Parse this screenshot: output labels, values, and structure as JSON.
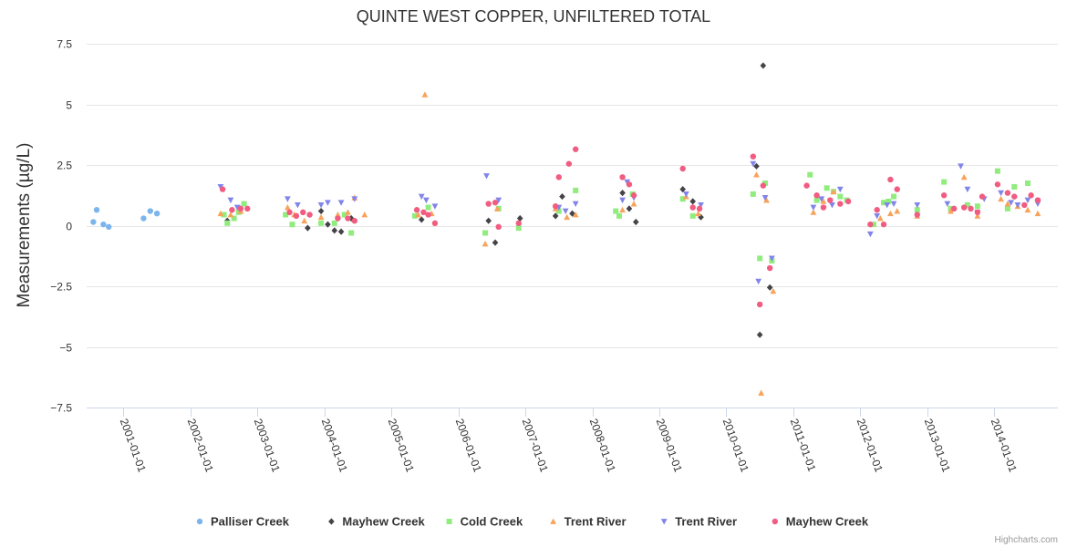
{
  "chart_data": {
    "type": "scatter",
    "title": "QUINTE WEST COPPER, UNFILTERED TOTAL",
    "xlabel": "",
    "ylabel": "Measurements (µg/L)",
    "xlim": [
      2000.45,
      2014.95
    ],
    "ylim": [
      -7.5,
      7.5
    ],
    "yticks": [
      {
        "v": 7.5,
        "label": "7.5"
      },
      {
        "v": 5,
        "label": "5"
      },
      {
        "v": 2.5,
        "label": "2.5"
      },
      {
        "v": 0,
        "label": "0"
      },
      {
        "v": -2.5,
        "label": "−2.5"
      },
      {
        "v": -5,
        "label": "−5"
      },
      {
        "v": -7.5,
        "label": "−7.5"
      }
    ],
    "xticks": [
      {
        "v": 2001,
        "label": "2001-01-01"
      },
      {
        "v": 2002,
        "label": "2002-01-01"
      },
      {
        "v": 2003,
        "label": "2003-01-01"
      },
      {
        "v": 2004,
        "label": "2004-01-01"
      },
      {
        "v": 2005,
        "label": "2005-01-01"
      },
      {
        "v": 2006,
        "label": "2006-01-01"
      },
      {
        "v": 2007,
        "label": "2007-01-01"
      },
      {
        "v": 2008,
        "label": "2008-01-01"
      },
      {
        "v": 2009,
        "label": "2009-01-01"
      },
      {
        "v": 2010,
        "label": "2010-01-01"
      },
      {
        "v": 2011,
        "label": "2011-01-01"
      },
      {
        "v": 2012,
        "label": "2012-01-01"
      },
      {
        "v": 2013,
        "label": "2013-01-01"
      },
      {
        "v": 2014,
        "label": "2014-01-01"
      }
    ],
    "series": [
      {
        "name": "Palliser Creek",
        "marker": "circle",
        "color": "#7cb5ec",
        "points": [
          [
            2000.55,
            0.15
          ],
          [
            2000.6,
            0.65
          ],
          [
            2000.7,
            0.05
          ],
          [
            2000.78,
            -0.05
          ],
          [
            2001.3,
            0.3
          ],
          [
            2001.4,
            0.6
          ],
          [
            2001.5,
            0.5
          ]
        ]
      },
      {
        "name": "Mayhew Creek",
        "marker": "diamond",
        "color": "#434348",
        "points": [
          [
            2002.55,
            0.2
          ],
          [
            2003.75,
            -0.1
          ],
          [
            2003.95,
            0.6
          ],
          [
            2004.05,
            0.05
          ],
          [
            2004.15,
            -0.2
          ],
          [
            2004.25,
            -0.25
          ],
          [
            2004.4,
            0.3
          ],
          [
            2005.45,
            0.25
          ],
          [
            2006.45,
            0.2
          ],
          [
            2006.55,
            -0.7
          ],
          [
            2006.92,
            0.3
          ],
          [
            2007.45,
            0.4
          ],
          [
            2007.55,
            1.2
          ],
          [
            2007.7,
            0.5
          ],
          [
            2008.45,
            1.35
          ],
          [
            2008.55,
            0.7
          ],
          [
            2008.65,
            0.15
          ],
          [
            2009.35,
            1.5
          ],
          [
            2009.5,
            1.0
          ],
          [
            2009.62,
            0.35
          ],
          [
            2010.45,
            2.45
          ],
          [
            2010.5,
            -4.5
          ],
          [
            2010.55,
            6.6
          ],
          [
            2010.65,
            -2.55
          ]
        ]
      },
      {
        "name": "Cold Creek",
        "marker": "square",
        "color": "#90ed7d",
        "points": [
          [
            2002.5,
            0.45
          ],
          [
            2002.55,
            0.1
          ],
          [
            2002.65,
            0.3
          ],
          [
            2002.72,
            0.55
          ],
          [
            2002.8,
            0.9
          ],
          [
            2003.42,
            0.45
          ],
          [
            2003.52,
            0.05
          ],
          [
            2003.95,
            0.1
          ],
          [
            2004.15,
            0.1
          ],
          [
            2004.3,
            0.45
          ],
          [
            2004.4,
            -0.3
          ],
          [
            2005.35,
            0.4
          ],
          [
            2005.55,
            0.75
          ],
          [
            2006.4,
            -0.3
          ],
          [
            2006.6,
            0.7
          ],
          [
            2006.9,
            -0.1
          ],
          [
            2007.5,
            0.6
          ],
          [
            2007.75,
            1.45
          ],
          [
            2008.35,
            0.6
          ],
          [
            2008.4,
            0.4
          ],
          [
            2008.6,
            1.3
          ],
          [
            2009.35,
            1.1
          ],
          [
            2009.5,
            0.4
          ],
          [
            2010.4,
            1.3
          ],
          [
            2010.5,
            -1.35
          ],
          [
            2010.58,
            1.75
          ],
          [
            2010.68,
            -1.45
          ],
          [
            2011.25,
            2.1
          ],
          [
            2011.35,
            1.05
          ],
          [
            2011.5,
            1.55
          ],
          [
            2011.6,
            1.4
          ],
          [
            2011.7,
            1.2
          ],
          [
            2011.8,
            1.05
          ],
          [
            2012.2,
            0.05
          ],
          [
            2012.35,
            0.95
          ],
          [
            2012.42,
            1.0
          ],
          [
            2012.5,
            1.2
          ],
          [
            2012.85,
            0.65
          ],
          [
            2013.25,
            1.8
          ],
          [
            2013.35,
            0.7
          ],
          [
            2013.6,
            0.85
          ],
          [
            2013.75,
            0.8
          ],
          [
            2014.05,
            2.25
          ],
          [
            2014.2,
            0.7
          ],
          [
            2014.3,
            1.6
          ],
          [
            2014.5,
            1.75
          ]
        ]
      },
      {
        "name": "Trent River",
        "marker": "triangle",
        "color": "#f7a35c",
        "points": [
          [
            2002.45,
            0.5
          ],
          [
            2002.6,
            0.45
          ],
          [
            2002.75,
            0.6
          ],
          [
            2003.45,
            0.75
          ],
          [
            2003.55,
            0.45
          ],
          [
            2003.7,
            0.2
          ],
          [
            2003.95,
            0.35
          ],
          [
            2004.2,
            0.45
          ],
          [
            2004.35,
            0.55
          ],
          [
            2004.45,
            1.15
          ],
          [
            2004.6,
            0.45
          ],
          [
            2005.4,
            0.45
          ],
          [
            2005.5,
            5.4
          ],
          [
            2005.6,
            0.5
          ],
          [
            2006.4,
            -0.75
          ],
          [
            2006.58,
            0.7
          ],
          [
            2007.45,
            0.7
          ],
          [
            2007.62,
            0.35
          ],
          [
            2007.75,
            0.45
          ],
          [
            2008.45,
            0.65
          ],
          [
            2008.62,
            0.9
          ],
          [
            2009.4,
            1.2
          ],
          [
            2009.58,
            0.5
          ],
          [
            2010.45,
            2.1
          ],
          [
            2010.52,
            -6.9
          ],
          [
            2010.6,
            1.05
          ],
          [
            2010.7,
            -2.7
          ],
          [
            2011.3,
            0.55
          ],
          [
            2011.45,
            1.0
          ],
          [
            2011.6,
            1.4
          ],
          [
            2012.3,
            0.3
          ],
          [
            2012.45,
            0.5
          ],
          [
            2012.55,
            0.6
          ],
          [
            2012.85,
            0.4
          ],
          [
            2013.35,
            0.6
          ],
          [
            2013.55,
            2.0
          ],
          [
            2013.75,
            0.4
          ],
          [
            2014.1,
            1.1
          ],
          [
            2014.2,
            0.9
          ],
          [
            2014.35,
            0.8
          ],
          [
            2014.5,
            0.65
          ],
          [
            2014.65,
            0.5
          ]
        ]
      },
      {
        "name": "Trent River",
        "marker": "triangle-down",
        "color": "#8085e9",
        "points": [
          [
            2002.45,
            1.6
          ],
          [
            2002.6,
            1.05
          ],
          [
            2002.7,
            0.75
          ],
          [
            2003.45,
            1.1
          ],
          [
            2003.6,
            0.85
          ],
          [
            2003.95,
            0.85
          ],
          [
            2004.05,
            0.95
          ],
          [
            2004.25,
            0.95
          ],
          [
            2004.45,
            1.1
          ],
          [
            2005.45,
            1.2
          ],
          [
            2005.52,
            1.05
          ],
          [
            2005.65,
            0.8
          ],
          [
            2006.42,
            2.05
          ],
          [
            2006.6,
            1.05
          ],
          [
            2007.5,
            0.75
          ],
          [
            2007.6,
            0.6
          ],
          [
            2007.75,
            0.9
          ],
          [
            2008.45,
            1.05
          ],
          [
            2008.52,
            1.8
          ],
          [
            2008.62,
            1.15
          ],
          [
            2009.4,
            1.3
          ],
          [
            2009.62,
            0.85
          ],
          [
            2010.4,
            2.55
          ],
          [
            2010.48,
            -2.3
          ],
          [
            2010.58,
            1.15
          ],
          [
            2010.68,
            -1.35
          ],
          [
            2011.3,
            0.75
          ],
          [
            2011.42,
            1.1
          ],
          [
            2011.58,
            0.85
          ],
          [
            2011.7,
            1.5
          ],
          [
            2012.15,
            -0.35
          ],
          [
            2012.25,
            0.4
          ],
          [
            2012.4,
            0.85
          ],
          [
            2012.5,
            0.9
          ],
          [
            2012.85,
            0.85
          ],
          [
            2013.3,
            0.9
          ],
          [
            2013.5,
            2.45
          ],
          [
            2013.6,
            1.5
          ],
          [
            2013.75,
            0.55
          ],
          [
            2013.85,
            1.1
          ],
          [
            2014.1,
            1.35
          ],
          [
            2014.25,
            0.95
          ],
          [
            2014.35,
            0.85
          ],
          [
            2014.5,
            1.05
          ],
          [
            2014.65,
            0.9
          ]
        ]
      },
      {
        "name": "Mayhew Creek",
        "marker": "circle",
        "color": "#f15c80",
        "points": [
          [
            2002.48,
            1.5
          ],
          [
            2002.62,
            0.65
          ],
          [
            2002.75,
            0.7
          ],
          [
            2002.85,
            0.7
          ],
          [
            2003.48,
            0.55
          ],
          [
            2003.58,
            0.4
          ],
          [
            2003.68,
            0.55
          ],
          [
            2003.78,
            0.45
          ],
          [
            2004.2,
            0.3
          ],
          [
            2004.35,
            0.3
          ],
          [
            2004.45,
            0.2
          ],
          [
            2005.38,
            0.65
          ],
          [
            2005.48,
            0.55
          ],
          [
            2005.55,
            0.45
          ],
          [
            2005.65,
            0.1
          ],
          [
            2006.45,
            0.9
          ],
          [
            2006.55,
            0.95
          ],
          [
            2006.6,
            -0.05
          ],
          [
            2006.9,
            0.1
          ],
          [
            2007.45,
            0.8
          ],
          [
            2007.5,
            2.0
          ],
          [
            2007.65,
            2.55
          ],
          [
            2007.75,
            3.15
          ],
          [
            2008.45,
            2.0
          ],
          [
            2008.55,
            1.7
          ],
          [
            2008.62,
            1.25
          ],
          [
            2009.35,
            2.35
          ],
          [
            2009.5,
            0.75
          ],
          [
            2009.6,
            0.7
          ],
          [
            2010.4,
            2.85
          ],
          [
            2010.5,
            -3.25
          ],
          [
            2010.55,
            1.65
          ],
          [
            2010.65,
            -1.75
          ],
          [
            2011.2,
            1.65
          ],
          [
            2011.35,
            1.25
          ],
          [
            2011.45,
            0.75
          ],
          [
            2011.55,
            1.05
          ],
          [
            2011.7,
            0.9
          ],
          [
            2011.82,
            1.0
          ],
          [
            2012.15,
            0.05
          ],
          [
            2012.25,
            0.65
          ],
          [
            2012.35,
            0.05
          ],
          [
            2012.45,
            1.9
          ],
          [
            2012.55,
            1.5
          ],
          [
            2012.85,
            0.45
          ],
          [
            2013.25,
            1.25
          ],
          [
            2013.4,
            0.7
          ],
          [
            2013.55,
            0.75
          ],
          [
            2013.65,
            0.7
          ],
          [
            2013.75,
            0.55
          ],
          [
            2013.82,
            1.2
          ],
          [
            2014.05,
            1.7
          ],
          [
            2014.2,
            1.35
          ],
          [
            2014.3,
            1.2
          ],
          [
            2014.45,
            0.85
          ],
          [
            2014.55,
            1.25
          ],
          [
            2014.65,
            1.05
          ]
        ]
      }
    ]
  },
  "credits": "Highcharts.com"
}
